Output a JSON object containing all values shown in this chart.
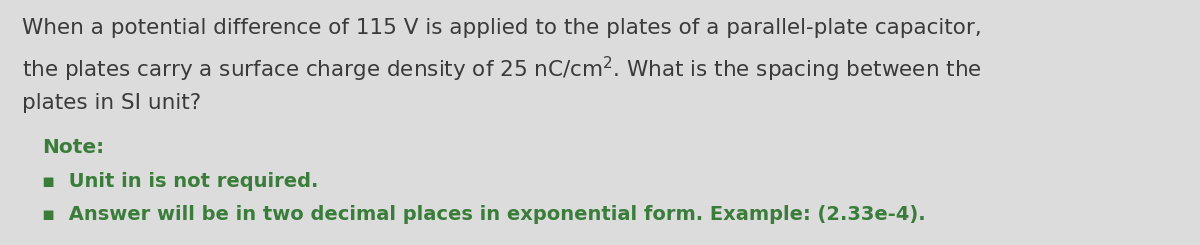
{
  "bg_color": "#dcdcdc",
  "main_text_color": "#3a3a3a",
  "green_color": "#3a7d3a",
  "line1": "When a potential difference of 115 V is applied to the plates of a parallel-plate capacitor,",
  "line2_normal": "the plates carry a surface charge density of 25 nC/cm",
  "line2_super": "2",
  "line2_end": ". What is the spacing between the",
  "line3": "plates in SI unit?",
  "note_label": "Note:",
  "bullet1": "▪  Unit in is not required.",
  "bullet2": "▪  Answer will be in two decimal places in exponential form. Example: (2.33e-4).",
  "main_fontsize": 15.5,
  "note_fontsize": 14.5,
  "bullet_fontsize": 14.0,
  "fig_width": 12.0,
  "fig_height": 2.45,
  "dpi": 100
}
